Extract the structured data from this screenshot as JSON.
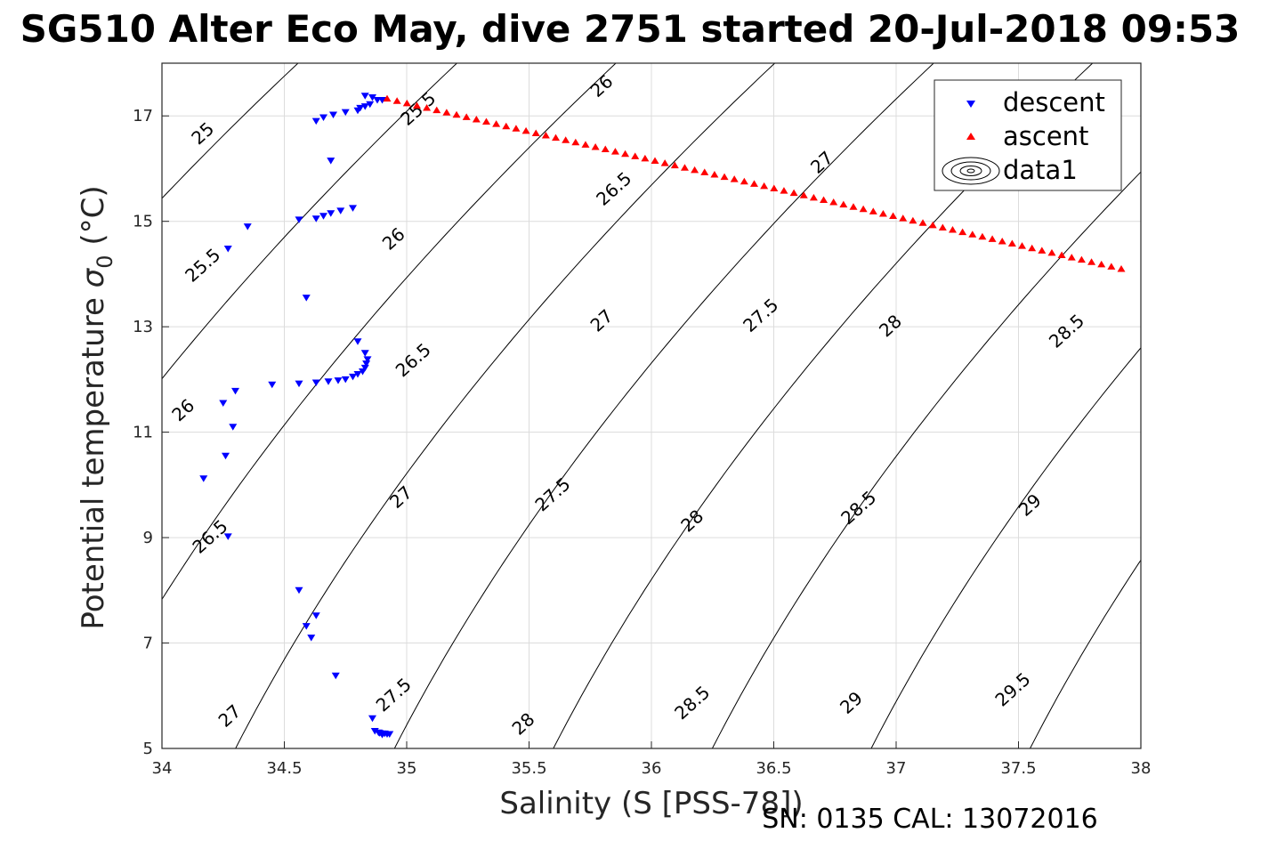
{
  "chart_data": {
    "type": "scatter",
    "title": "SG510 Alter Eco May, dive 2751 started 20-Jul-2018 09:53",
    "xlabel": "Salinity (S [PSS-78])",
    "ylabel_main": "Potential temperature ",
    "ylabel_symbol": "σ",
    "ylabel_sub": "0",
    "ylabel_unit": " (°C)",
    "footer": "SN: 0135  CAL: 13072016",
    "xlim": [
      34,
      38
    ],
    "ylim": [
      5,
      18
    ],
    "xticks": [
      "34",
      "34.5",
      "35",
      "35.5",
      "36",
      "36.5",
      "37",
      "37.5",
      "38"
    ],
    "yticks": [
      "5",
      "7",
      "9",
      "11",
      "13",
      "15",
      "17"
    ],
    "grid": true,
    "legend_placement": "top-right",
    "legend": [
      "descent",
      "ascent",
      "data1"
    ],
    "colors": {
      "descent": "#0000ff",
      "ascent": "#ff0000",
      "contour": "#000000",
      "grid": "#dcdcdc"
    },
    "series": [
      {
        "name": "descent",
        "marker": "triangle-down",
        "points": [
          [
            34.83,
            17.38
          ],
          [
            34.86,
            17.35
          ],
          [
            34.88,
            17.3
          ],
          [
            34.9,
            17.3
          ],
          [
            34.85,
            17.22
          ],
          [
            34.83,
            17.18
          ],
          [
            34.81,
            17.15
          ],
          [
            34.8,
            17.1
          ],
          [
            34.75,
            17.07
          ],
          [
            34.7,
            17.02
          ],
          [
            34.66,
            16.97
          ],
          [
            34.63,
            16.9
          ],
          [
            34.69,
            16.15
          ],
          [
            34.78,
            15.25
          ],
          [
            34.73,
            15.2
          ],
          [
            34.69,
            15.15
          ],
          [
            34.66,
            15.1
          ],
          [
            34.63,
            15.05
          ],
          [
            34.56,
            15.03
          ],
          [
            34.35,
            14.9
          ],
          [
            34.27,
            14.48
          ],
          [
            34.59,
            13.55
          ],
          [
            34.8,
            12.72
          ],
          [
            34.83,
            12.5
          ],
          [
            34.84,
            12.38
          ],
          [
            34.835,
            12.3
          ],
          [
            34.83,
            12.22
          ],
          [
            34.82,
            12.15
          ],
          [
            34.8,
            12.1
          ],
          [
            34.78,
            12.05
          ],
          [
            34.75,
            12.0
          ],
          [
            34.72,
            11.98
          ],
          [
            34.68,
            11.96
          ],
          [
            34.63,
            11.94
          ],
          [
            34.56,
            11.92
          ],
          [
            34.45,
            11.9
          ],
          [
            34.3,
            11.78
          ],
          [
            34.25,
            11.55
          ],
          [
            34.29,
            11.1
          ],
          [
            34.26,
            10.55
          ],
          [
            34.17,
            10.12
          ],
          [
            34.27,
            9.02
          ],
          [
            34.56,
            8.0
          ],
          [
            34.63,
            7.52
          ],
          [
            34.59,
            7.32
          ],
          [
            34.61,
            7.1
          ],
          [
            34.71,
            6.38
          ],
          [
            34.86,
            5.57
          ],
          [
            34.87,
            5.33
          ],
          [
            34.885,
            5.3
          ],
          [
            34.89,
            5.29
          ],
          [
            34.9,
            5.28
          ],
          [
            34.91,
            5.28
          ],
          [
            34.92,
            5.27
          ],
          [
            34.93,
            5.27
          ],
          [
            34.9,
            5.26
          ]
        ]
      },
      {
        "name": "ascent",
        "marker": "triangle-up",
        "x_start": 34.92,
        "x_end": 37.92,
        "y_start": 17.33,
        "y_end": 14.1,
        "count": 75
      }
    ],
    "contours": {
      "levels": [
        "25",
        "25.5",
        "26",
        "26.5",
        "27",
        "27.5",
        "28",
        "28.5",
        "29",
        "29.5"
      ],
      "label_points": [
        {
          "text": "25",
          "s": 34.17,
          "t": 16.65
        },
        {
          "text": "25.5",
          "s": 35.05,
          "t": 17.12
        },
        {
          "text": "26",
          "s": 35.8,
          "t": 17.55
        },
        {
          "text": "25.5",
          "s": 34.17,
          "t": 14.15
        },
        {
          "text": "26",
          "s": 34.95,
          "t": 14.65
        },
        {
          "text": "26.5",
          "s": 35.85,
          "t": 15.6
        },
        {
          "text": "27",
          "s": 36.7,
          "t": 16.1
        },
        {
          "text": "26",
          "s": 34.09,
          "t": 11.4
        },
        {
          "text": "26.5",
          "s": 35.03,
          "t": 12.35
        },
        {
          "text": "27",
          "s": 35.8,
          "t": 13.1
        },
        {
          "text": "27.5",
          "s": 36.45,
          "t": 13.2
        },
        {
          "text": "28",
          "s": 36.98,
          "t": 13.0
        },
        {
          "text": "28.5",
          "s": 37.7,
          "t": 12.9
        },
        {
          "text": "26.5",
          "s": 34.2,
          "t": 9.0
        },
        {
          "text": "27",
          "s": 34.98,
          "t": 9.75
        },
        {
          "text": "27.5",
          "s": 35.6,
          "t": 9.8
        },
        {
          "text": "28",
          "s": 36.17,
          "t": 9.3
        },
        {
          "text": "28.5",
          "s": 36.85,
          "t": 9.55
        },
        {
          "text": "29",
          "s": 37.55,
          "t": 9.6
        },
        {
          "text": "27",
          "s": 34.28,
          "t": 5.6
        },
        {
          "text": "27.5",
          "s": 34.95,
          "t": 6.0
        },
        {
          "text": "28",
          "s": 35.48,
          "t": 5.45
        },
        {
          "text": "28.5",
          "s": 36.17,
          "t": 5.85
        },
        {
          "text": "29",
          "s": 36.82,
          "t": 5.85
        },
        {
          "text": "29.5",
          "s": 37.48,
          "t": 6.1
        }
      ]
    }
  }
}
